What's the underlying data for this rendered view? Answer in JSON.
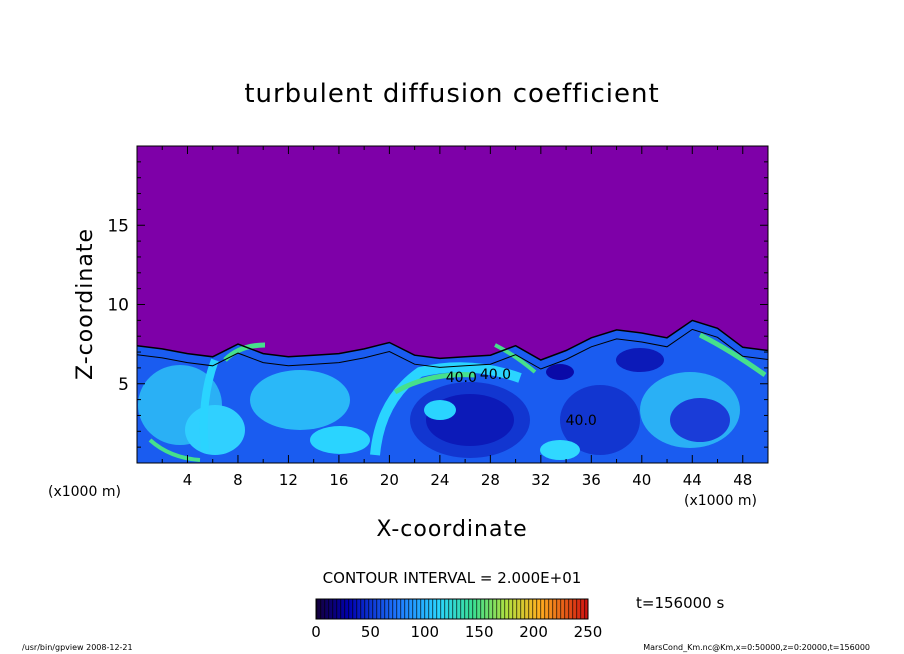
{
  "chart_data": {
    "type": "heatmap",
    "title": "turbulent diffusion coefficient",
    "xlabel": "X-coordinate",
    "ylabel": "Z-coordinate",
    "x_unit": "(x1000 m)",
    "y_unit": "(x1000 m)",
    "xlim": [
      0,
      50
    ],
    "ylim": [
      0,
      20
    ],
    "x_ticks": [
      "4",
      "8",
      "12",
      "16",
      "20",
      "24",
      "28",
      "32",
      "36",
      "40",
      "44",
      "48"
    ],
    "y_ticks": [
      "5",
      "10",
      "15"
    ],
    "x_tick_values": [
      4,
      8,
      12,
      16,
      20,
      24,
      28,
      32,
      36,
      40,
      44,
      48
    ],
    "y_tick_values": [
      5,
      10,
      15
    ],
    "contour_interval_text": "CONTOUR INTERVAL = 2.000E+01",
    "time_label": "t=156000 s",
    "colorbar": {
      "ticks": [
        "0",
        "50",
        "100",
        "150",
        "200",
        "250"
      ],
      "tick_values": [
        0,
        50,
        100,
        150,
        200,
        250
      ],
      "range": [
        0,
        250
      ]
    },
    "contour_labels": [
      {
        "text": "40.0",
        "x": 25.7,
        "z": 5.1
      },
      {
        "text": "40.0",
        "x": 28.4,
        "z": 5.3
      },
      {
        "text": "40.0",
        "x": 35.2,
        "z": 2.4
      }
    ],
    "boundary_layer_top_profile": {
      "x": [
        0,
        2,
        4,
        6,
        8,
        10,
        12,
        14,
        16,
        18,
        20,
        22,
        24,
        26,
        28,
        30,
        32,
        34,
        36,
        38,
        40,
        42,
        44,
        46,
        48,
        50
      ],
      "z": [
        7.4,
        7.2,
        6.9,
        6.7,
        7.5,
        6.9,
        6.7,
        6.8,
        6.9,
        7.2,
        7.6,
        6.8,
        6.6,
        6.7,
        6.8,
        7.4,
        6.5,
        7.1,
        7.9,
        8.4,
        8.2,
        7.9,
        9.0,
        8.5,
        7.3,
        7.1
      ]
    },
    "colors": {
      "background": "#7e00a8",
      "low": "#0a0aa8",
      "mid": "#1e78ff",
      "high": "#2ad4ff",
      "peak": "#46e08c",
      "contour": "#000000"
    }
  },
  "footer": {
    "left": "/usr/bin/gpview   2008-12-21",
    "right": "MarsCond_Km.nc@Km,x=0:50000,z=0:20000,t=156000"
  }
}
